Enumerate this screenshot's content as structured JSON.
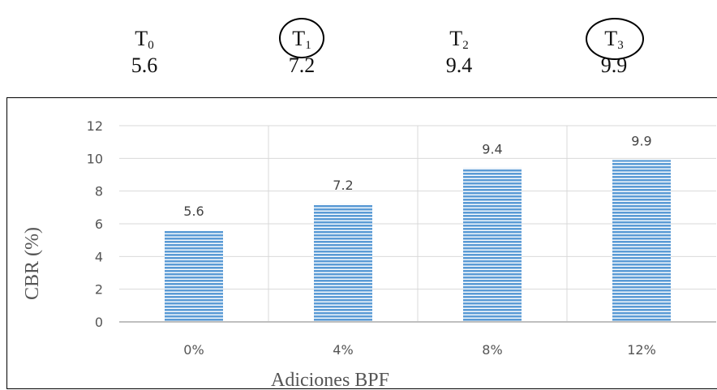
{
  "header": {
    "treatments": [
      {
        "letter": "T",
        "sub": "0",
        "value": "5.6",
        "circled": false
      },
      {
        "letter": "T",
        "sub": "1",
        "value": "7.2",
        "circled": true
      },
      {
        "letter": "T",
        "sub": "2",
        "value": "9.4",
        "circled": false
      },
      {
        "letter": "T",
        "sub": "3",
        "value": "9.9",
        "circled": true
      }
    ]
  },
  "chart_data": {
    "type": "bar",
    "categories": [
      "0%",
      "4%",
      "8%",
      "12%"
    ],
    "values": [
      5.6,
      7.2,
      9.4,
      9.9
    ],
    "data_labels": [
      "5.6",
      "7.2",
      "9.4",
      "9.9"
    ],
    "title": "",
    "xlabel": "Adiciones BPF",
    "ylabel": "CBR (%)",
    "ylim": [
      0,
      12
    ],
    "yticks": [
      "0",
      "2",
      "4",
      "6",
      "8",
      "10",
      "12"
    ],
    "grid": true,
    "legend": "none",
    "bar_color": "#5b9bd5",
    "bar_pattern": "horizontal-lines"
  }
}
